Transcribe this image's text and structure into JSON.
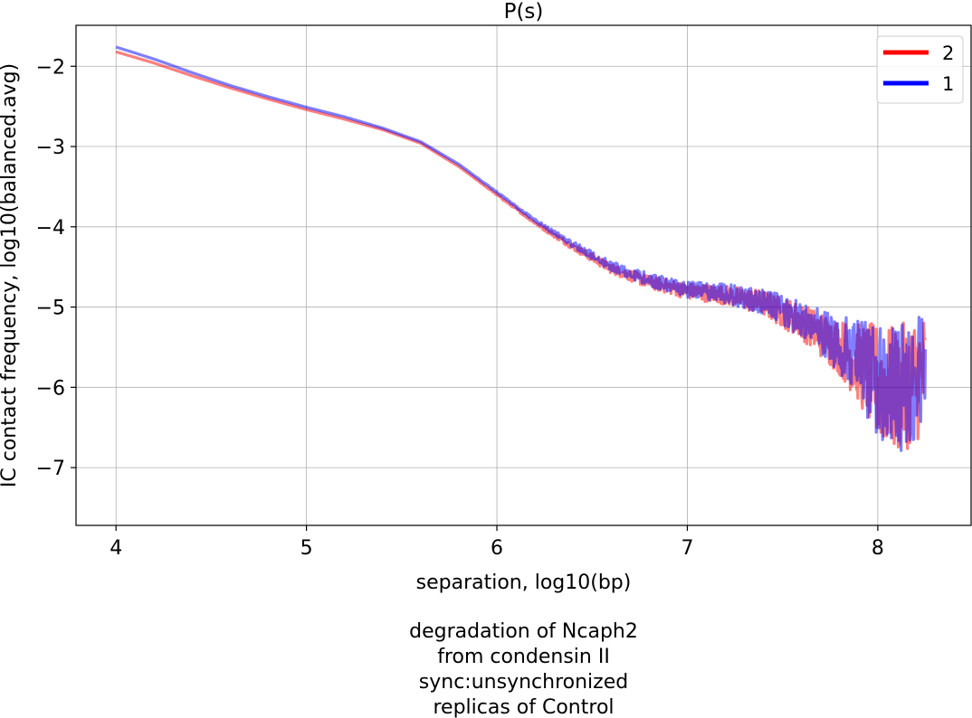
{
  "chart_data": {
    "type": "line",
    "title": "P(s)",
    "xlabel": "separation, log10(bp)",
    "ylabel": "IC contact frequency, log10(balanced.avg)",
    "xlim": [
      3.79,
      8.49
    ],
    "ylim": [
      -7.72,
      -1.49
    ],
    "x_ticks": [
      "4",
      "5",
      "6",
      "7",
      "8"
    ],
    "x_tick_values": [
      4,
      5,
      6,
      7,
      8
    ],
    "y_ticks": [
      "−2",
      "−3",
      "−4",
      "−5",
      "−6",
      "−7"
    ],
    "y_tick_values": [
      -2,
      -3,
      -4,
      -5,
      -6,
      -7
    ],
    "grid": true,
    "legend_position": "top-right",
    "series": [
      {
        "name": "2",
        "color": "#ff0000",
        "alpha": 0.5,
        "x": [
          4.0,
          4.2,
          4.4,
          4.6,
          4.8,
          5.0,
          5.2,
          5.4,
          5.6,
          5.8,
          6.0,
          6.2,
          6.4,
          6.6,
          6.8,
          7.0,
          7.2,
          7.4,
          7.6,
          7.8,
          7.9,
          8.0,
          8.1,
          8.2,
          8.25
        ],
        "y": [
          -1.82,
          -1.96,
          -2.12,
          -2.27,
          -2.41,
          -2.54,
          -2.66,
          -2.79,
          -2.96,
          -3.25,
          -3.6,
          -3.95,
          -4.25,
          -4.52,
          -4.69,
          -4.8,
          -4.85,
          -4.95,
          -5.18,
          -5.5,
          -5.7,
          -5.95,
          -6.05,
          -5.9,
          -5.8
        ],
        "noise_amp": [
          0,
          0,
          0,
          0,
          0,
          0,
          0,
          0,
          0,
          0,
          0.01,
          0.02,
          0.04,
          0.06,
          0.08,
          0.1,
          0.12,
          0.16,
          0.22,
          0.35,
          0.5,
          0.75,
          0.8,
          0.8,
          0.75
        ]
      },
      {
        "name": "1",
        "color": "#0000ff",
        "alpha": 0.5,
        "x": [
          4.0,
          4.2,
          4.4,
          4.6,
          4.8,
          5.0,
          5.2,
          5.4,
          5.6,
          5.8,
          6.0,
          6.2,
          6.4,
          6.6,
          6.8,
          7.0,
          7.2,
          7.4,
          7.6,
          7.8,
          7.9,
          8.0,
          8.1,
          8.2,
          8.25
        ],
        "y": [
          -1.76,
          -1.91,
          -2.08,
          -2.24,
          -2.38,
          -2.51,
          -2.63,
          -2.77,
          -2.94,
          -3.22,
          -3.57,
          -3.92,
          -4.22,
          -4.49,
          -4.66,
          -4.78,
          -4.83,
          -4.93,
          -5.15,
          -5.46,
          -5.66,
          -5.92,
          -6.02,
          -5.88,
          -5.78
        ],
        "noise_amp": [
          0,
          0,
          0,
          0,
          0,
          0,
          0,
          0,
          0,
          0,
          0.01,
          0.02,
          0.04,
          0.06,
          0.08,
          0.1,
          0.12,
          0.16,
          0.22,
          0.35,
          0.5,
          0.75,
          0.8,
          0.8,
          0.75
        ]
      }
    ],
    "caption": [
      "degradation of Ncaph2",
      "from condensin II",
      "sync:unsynchronized",
      "replicas of Control"
    ]
  }
}
